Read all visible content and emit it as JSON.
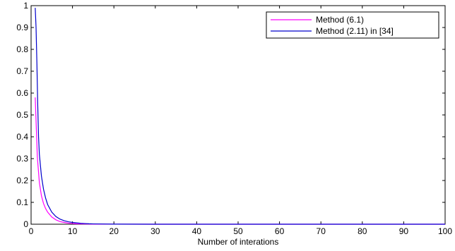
{
  "chart_data": {
    "type": "line",
    "title": "",
    "xlabel": "Number of interations",
    "ylabel": "",
    "xlim": [
      0,
      100
    ],
    "ylim": [
      0,
      1
    ],
    "xticks": [
      "0",
      "10",
      "20",
      "30",
      "40",
      "50",
      "60",
      "70",
      "80",
      "90",
      "100"
    ],
    "yticks": [
      "0",
      "0.1",
      "0.2",
      "0.3",
      "0.4",
      "0.5",
      "0.6",
      "0.7",
      "0.8",
      "0.9",
      "1"
    ],
    "grid": false,
    "legend_position": "top-right",
    "series": [
      {
        "name": "Method (6.1)",
        "color": "#ff00ff",
        "x": [
          1,
          1.5,
          2,
          2.5,
          3,
          3.5,
          4,
          5,
          6,
          7,
          8,
          9,
          10,
          11,
          12,
          13,
          14,
          15,
          20,
          30,
          40,
          50,
          60,
          70,
          80,
          90,
          100
        ],
        "y": [
          0.58,
          0.31,
          0.19,
          0.13,
          0.095,
          0.072,
          0.055,
          0.033,
          0.02,
          0.012,
          0.008,
          0.005,
          0.003,
          0.002,
          0.0015,
          0.001,
          0.0007,
          0.0005,
          0.0002,
          0,
          0,
          0,
          0,
          0,
          0,
          0,
          0
        ]
      },
      {
        "name": "Method (2.11) in [34]",
        "color": "#0000cc",
        "x": [
          1,
          1.2,
          1.4,
          1.6,
          1.8,
          2,
          2.5,
          3,
          3.5,
          4,
          5,
          6,
          7,
          8,
          9,
          10,
          11,
          12,
          13,
          14,
          15,
          20,
          30,
          40,
          50,
          60,
          70,
          80,
          90,
          100
        ],
        "y": [
          0.99,
          0.9,
          0.74,
          0.55,
          0.4,
          0.32,
          0.22,
          0.16,
          0.12,
          0.09,
          0.055,
          0.035,
          0.023,
          0.016,
          0.011,
          0.008,
          0.006,
          0.004,
          0.003,
          0.002,
          0.0015,
          0.0005,
          0,
          0,
          0,
          0,
          0,
          0,
          0,
          0
        ]
      }
    ]
  }
}
